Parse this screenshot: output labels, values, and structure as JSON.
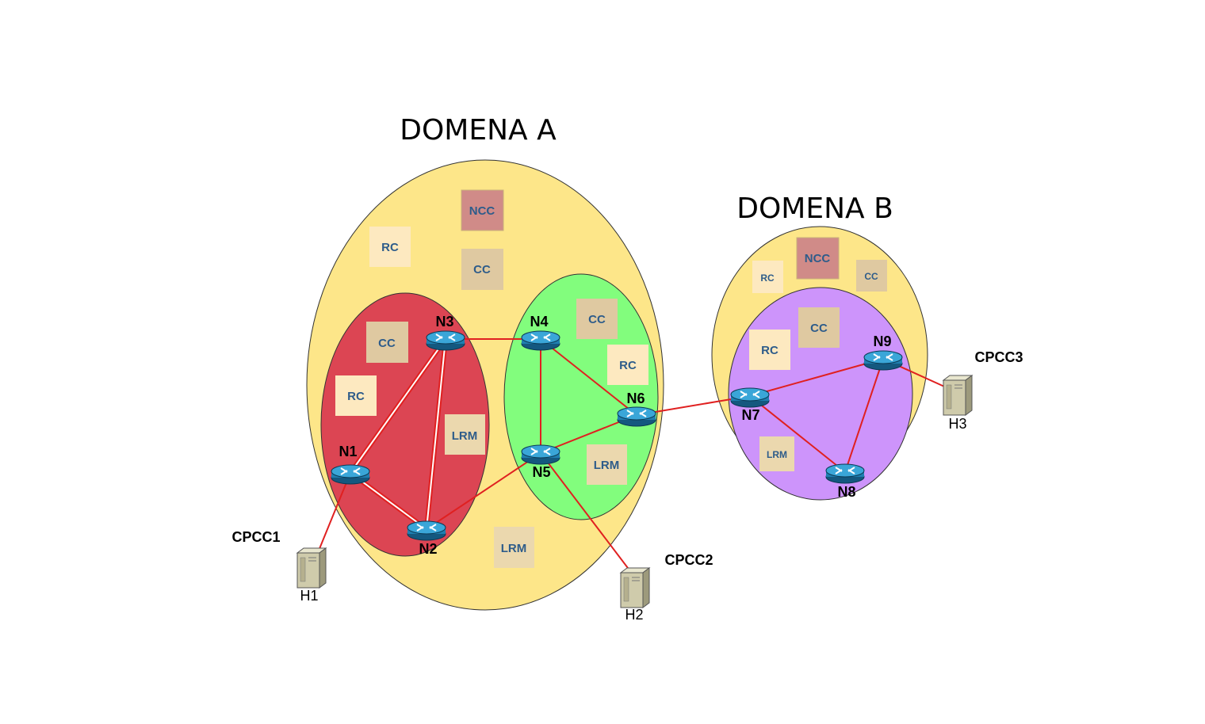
{
  "domains": {
    "a": {
      "title": "DOMENA A"
    },
    "b": {
      "title": "DOMENA B"
    }
  },
  "boxes": {
    "a_ncc": "NCC",
    "a_rc": "RC",
    "a_cc": "CC",
    "red_cc": "CC",
    "red_rc": "RC",
    "red_lrm": "LRM",
    "green_cc": "CC",
    "green_rc": "RC",
    "green_lrm": "LRM",
    "a_lrm": "LRM",
    "b_ncc": "NCC",
    "b_rc": "RC",
    "b_cc": "CC",
    "purple_rc": "RC",
    "purple_cc": "CC",
    "purple_lrm": "LRM"
  },
  "nodes": {
    "n1": "N1",
    "n2": "N2",
    "n3": "N3",
    "n4": "N4",
    "n5": "N5",
    "n6": "N6",
    "n7": "N7",
    "n8": "N8",
    "n9": "N9"
  },
  "hosts": {
    "h1": "H1",
    "h2": "H2",
    "h3": "H3"
  },
  "clients": {
    "cpcc1": "CPCC1",
    "cpcc2": "CPCC2",
    "cpcc3": "CPCC3"
  },
  "colors": {
    "domain_fill": "#fde689",
    "subdomain_red": "#dc4553",
    "subdomain_green": "#82fd7d",
    "subdomain_purple": "#cd94fb",
    "ncc_box": "#d08b88",
    "cc_box": "#dfc9a1",
    "rc_box": "#fde9c0",
    "lrm_box": "#ebd8ae",
    "link": "#e02020",
    "router": "#1f7fb0"
  }
}
